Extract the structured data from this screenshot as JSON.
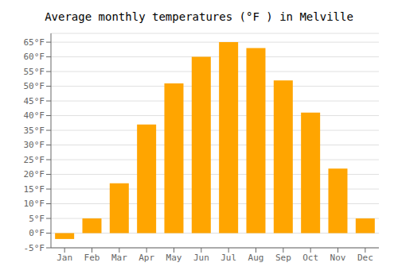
{
  "chart_data": {
    "type": "bar",
    "title": "Average monthly temperatures (°F ) in Melville",
    "categories": [
      "Jan",
      "Feb",
      "Mar",
      "Apr",
      "May",
      "Jun",
      "Jul",
      "Aug",
      "Sep",
      "Oct",
      "Nov",
      "Dec"
    ],
    "values": [
      -2,
      5,
      17,
      37,
      51,
      60,
      65,
      63,
      52,
      41,
      22,
      5
    ],
    "color": "#FFA500",
    "ylim": [
      -5,
      68
    ],
    "yticks": [
      {
        "value": -5,
        "label": "-5°F"
      },
      {
        "value": 0,
        "label": "0°F"
      },
      {
        "value": 5,
        "label": "5°F"
      },
      {
        "value": 10,
        "label": "10°F"
      },
      {
        "value": 15,
        "label": "15°F"
      },
      {
        "value": 20,
        "label": "20°F"
      },
      {
        "value": 25,
        "label": "25°F"
      },
      {
        "value": 30,
        "label": "30°F"
      },
      {
        "value": 35,
        "label": "35°F"
      },
      {
        "value": 40,
        "label": "40°F"
      },
      {
        "value": 45,
        "label": "45°F"
      },
      {
        "value": 50,
        "label": "50°F"
      },
      {
        "value": 55,
        "label": "55°F"
      },
      {
        "value": 60,
        "label": "60°F"
      },
      {
        "value": 65,
        "label": "65°F"
      }
    ],
    "grid": true
  }
}
